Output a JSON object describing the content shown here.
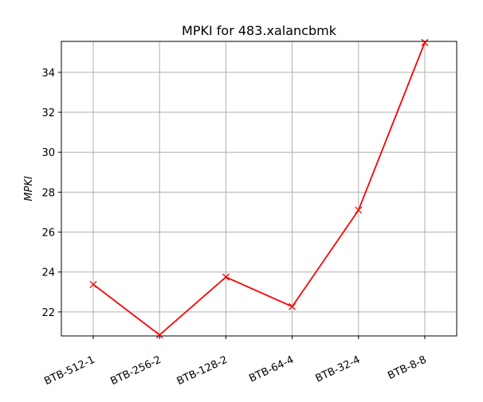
{
  "chart_data": {
    "type": "line",
    "title": "MPKI for 483.xalancbmk",
    "xlabel": "",
    "ylabel": "MPKI",
    "categories": [
      "BTB-512-1",
      "BTB-256-2",
      "BTB-128-2",
      "BTB-64-4",
      "BTB-32-4",
      "BTB-8-8"
    ],
    "series": [
      {
        "values": [
          23.38,
          20.85,
          23.75,
          22.27,
          27.1,
          35.5
        ]
      }
    ],
    "ylim": [
      20.8,
      35.55
    ],
    "yticks": [
      22,
      24,
      26,
      28,
      30,
      32,
      34
    ],
    "grid": true,
    "line_color": "#ff0000",
    "marker": "x"
  }
}
